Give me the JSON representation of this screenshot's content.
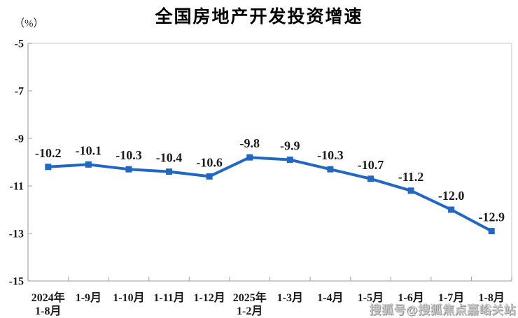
{
  "page": {
    "title": "全国房地产开发投资增速",
    "unit_label": "（%）",
    "watermark": "搜狐号@搜狐焦点嘉峪关站"
  },
  "chart_data": {
    "type": "line",
    "title": "全国房地产开发投资增速",
    "ylabel": "（%）",
    "categories": [
      [
        "2024年",
        "1-8月"
      ],
      [
        "1-9月"
      ],
      [
        "1-10月"
      ],
      [
        "1-11月"
      ],
      [
        "1-12月"
      ],
      [
        "2025年",
        "1-2月"
      ],
      [
        "1-3月"
      ],
      [
        "1-4月"
      ],
      [
        "1-5月"
      ],
      [
        "1-6月"
      ],
      [
        "1-7月"
      ],
      [
        "1-8月"
      ]
    ],
    "values": [
      -10.2,
      -10.1,
      -10.3,
      -10.4,
      -10.6,
      -9.8,
      -9.9,
      -10.3,
      -10.7,
      -11.2,
      -12.0,
      -12.9
    ],
    "data_labels": [
      "-10.2",
      "-10.1",
      "-10.3",
      "-10.4",
      "-10.6",
      "-9.8",
      "-9.9",
      "-10.3",
      "-10.7",
      "-11.2",
      "-12.0",
      "-12.9"
    ],
    "y_ticks": [
      -5,
      -7,
      -9,
      -11,
      -13,
      -15
    ],
    "y_tick_labels": [
      "-5",
      "-7",
      "-9",
      "-11",
      "-13",
      "-15"
    ],
    "ylim": [
      -15,
      -5
    ],
    "grid": false,
    "legend": "none",
    "marker": "square",
    "line_color": "#2267c2",
    "label_color": "#1a1a1a",
    "axis_color": "#adadad",
    "border_color": "#d2d2d2"
  }
}
